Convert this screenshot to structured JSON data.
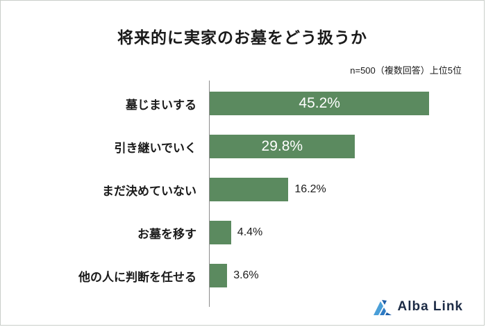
{
  "title": "将来的に実家のお墓をどう扱うか",
  "note": "n=500（複数回答）上位5位",
  "brand": {
    "name": "Alba Link"
  },
  "colors": {
    "bar": "#5b8a5f",
    "inside_label": "#ffffff",
    "outside_label": "#1a1a1a",
    "axis_line": "#8c8c8c",
    "logo_light_blue": "#4a9fd8",
    "logo_dark_blue": "#1f5fa8",
    "brand_text": "#1c2b45"
  },
  "chart_data": {
    "type": "bar",
    "orientation": "horizontal",
    "title": "将来的に実家のお墓をどう扱うか",
    "note": "n=500（複数回答）上位5位",
    "categories": [
      "墓じまいする",
      "引き継いでいく",
      "まだ決めていない",
      "お墓を移す",
      "他の人に判断を任せる"
    ],
    "values": [
      45.2,
      29.8,
      16.2,
      4.4,
      3.6
    ],
    "value_labels": [
      "45.2%",
      "29.8%",
      "16.2%",
      "4.4%",
      "3.6%"
    ],
    "unit": "%",
    "xlim": [
      0,
      50
    ],
    "grid": false,
    "legend": false,
    "bar_color": "#5b8a5f",
    "inside_label_threshold": 20
  }
}
